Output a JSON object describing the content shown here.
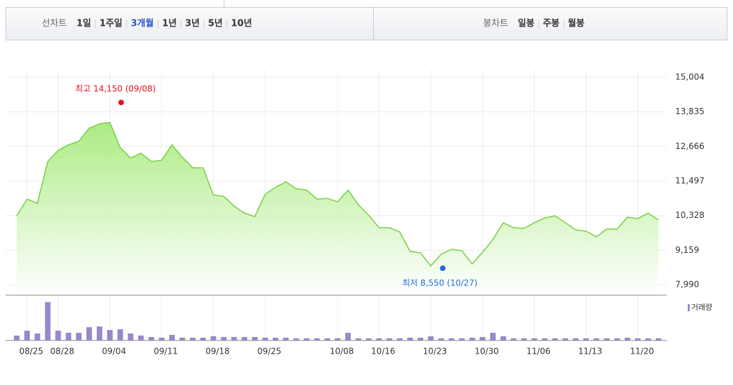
{
  "tabs": {
    "line_chart_label": "선차트",
    "periods": [
      {
        "label": "1일",
        "active": false
      },
      {
        "label": "1주일",
        "active": false
      },
      {
        "label": "3개월",
        "active": true
      },
      {
        "label": "1년",
        "active": false
      },
      {
        "label": "3년",
        "active": false
      },
      {
        "label": "5년",
        "active": false
      },
      {
        "label": "10년",
        "active": false
      }
    ],
    "candle_chart_label": "봉차트",
    "candle_periods": [
      "일봉",
      "주봉",
      "월봉"
    ]
  },
  "chart_data": {
    "type": "area",
    "categories": [
      null,
      "08/25",
      null,
      null,
      "08/28",
      null,
      null,
      null,
      null,
      "09/04",
      null,
      null,
      null,
      null,
      "09/11",
      null,
      null,
      null,
      null,
      "09/18",
      null,
      null,
      null,
      null,
      "09/25",
      null,
      null,
      null,
      null,
      null,
      null,
      "10/08",
      null,
      null,
      null,
      "10/16",
      null,
      null,
      null,
      null,
      "10/23",
      null,
      null,
      null,
      null,
      "10/30",
      null,
      null,
      null,
      null,
      "11/06",
      null,
      null,
      null,
      null,
      "11/13",
      null,
      null,
      null,
      null,
      "11/20",
      null,
      null
    ],
    "values": [
      10320,
      10885,
      10744,
      12156,
      12532,
      12720,
      12838,
      13285,
      13427,
      13474,
      12626,
      12273,
      12438,
      12156,
      12203,
      12720,
      12297,
      11944,
      11944,
      11026,
      10979,
      10650,
      10414,
      10296,
      11050,
      11285,
      11473,
      11238,
      11191,
      10885,
      10908,
      10791,
      11191,
      10697,
      10343,
      9920,
      9920,
      9779,
      9120,
      9073,
      8625,
      9026,
      9190,
      9143,
      8696,
      9096,
      9520,
      10085,
      9920,
      9896,
      10085,
      10249,
      10320,
      10085,
      9849,
      9802,
      9614,
      9873,
      9873,
      10273,
      10226,
      10414,
      10179
    ],
    "color": "#7dd14a",
    "ylim": [
      7640,
      15260
    ],
    "yticks": [
      {
        "value": 7990,
        "label": "7,990"
      },
      {
        "value": 9159,
        "label": "9,159"
      },
      {
        "value": 10328,
        "label": "10,328"
      },
      {
        "value": 11497,
        "label": "11,497"
      },
      {
        "value": 12666,
        "label": "12,666"
      },
      {
        "value": 13835,
        "label": "13,835"
      },
      {
        "value": 15004,
        "label": "15,004"
      }
    ],
    "grid": true,
    "annotations": [
      {
        "text": "최고 14,150 (09/08)",
        "value": 14150,
        "color": "#e8101e"
      },
      {
        "text": "최저 8,550 (10/27)",
        "value": 8550,
        "color": "#1d6ed8"
      }
    ],
    "volume": {
      "name": "거래량",
      "color": "#9988cc",
      "values": [
        7,
        14,
        10,
        55,
        14,
        11,
        11,
        19,
        20,
        15,
        16,
        10,
        7,
        5,
        4,
        8,
        4,
        4,
        4,
        6,
        5,
        5,
        5,
        5,
        4,
        4,
        4,
        3,
        3,
        3,
        3,
        3,
        11,
        3,
        3,
        3,
        3,
        3,
        4,
        4,
        6,
        3,
        3,
        3,
        4,
        5,
        11,
        6,
        3,
        3,
        3,
        3,
        3,
        3,
        3,
        3,
        3,
        3,
        3,
        4,
        3,
        3,
        3
      ]
    }
  }
}
